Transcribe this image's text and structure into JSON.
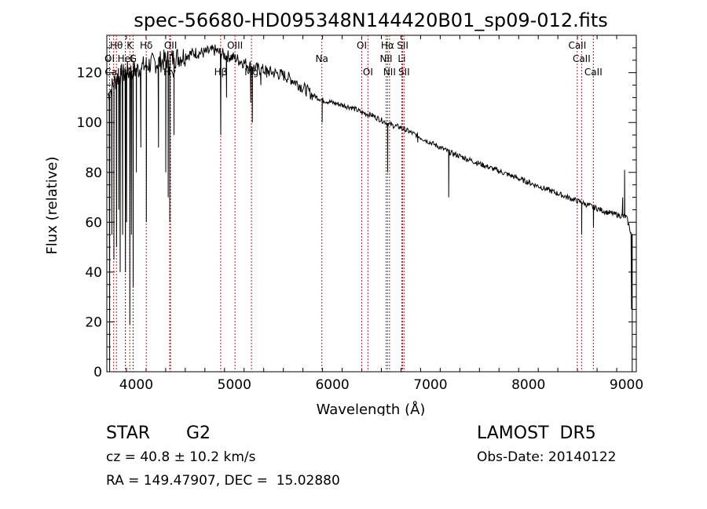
{
  "chart_data": {
    "type": "line",
    "title": "spec-56680-HD095348N144420B01_sp09-012.fits",
    "xlabel": "Wavelength (Å)",
    "ylabel": "Flux (relative)",
    "xlim": [
      3700,
      9100
    ],
    "ylim": [
      0,
      135
    ],
    "xticks": [
      4000,
      5000,
      6000,
      7000,
      8000,
      9000
    ],
    "yticks": [
      0,
      20,
      40,
      60,
      80,
      100,
      120
    ],
    "grid": false,
    "line_color": "#000000",
    "marker_color": "#b22222",
    "continuum": [
      [
        3700,
        110
      ],
      [
        3800,
        118
      ],
      [
        3900,
        120
      ],
      [
        4000,
        121
      ],
      [
        4100,
        123
      ],
      [
        4200,
        124
      ],
      [
        4300,
        125
      ],
      [
        4400,
        126
      ],
      [
        4500,
        127
      ],
      [
        4600,
        128
      ],
      [
        4700,
        128
      ],
      [
        4800,
        129
      ],
      [
        4900,
        127
      ],
      [
        5000,
        126
      ],
      [
        5100,
        124
      ],
      [
        5200,
        122
      ],
      [
        5300,
        121
      ],
      [
        5400,
        120
      ],
      [
        5500,
        119
      ],
      [
        5600,
        117
      ],
      [
        5700,
        114
      ],
      [
        5800,
        111
      ],
      [
        5900,
        109
      ],
      [
        6000,
        108
      ],
      [
        6100,
        107
      ],
      [
        6200,
        106
      ],
      [
        6300,
        104
      ],
      [
        6400,
        103
      ],
      [
        6500,
        101
      ],
      [
        6600,
        99
      ],
      [
        6700,
        98
      ],
      [
        6800,
        96
      ],
      [
        6900,
        94
      ],
      [
        7000,
        92
      ],
      [
        7200,
        88
      ],
      [
        7400,
        85
      ],
      [
        7600,
        82
      ],
      [
        7800,
        79
      ],
      [
        8000,
        76
      ],
      [
        8200,
        73
      ],
      [
        8400,
        70
      ],
      [
        8600,
        67
      ],
      [
        8800,
        64
      ],
      [
        8900,
        63
      ],
      [
        9000,
        62
      ],
      [
        9050,
        55
      ]
    ],
    "absorption": [
      [
        3728,
        0
      ],
      [
        3750,
        55
      ],
      [
        3771,
        45
      ],
      [
        3798,
        50
      ],
      [
        3820,
        65
      ],
      [
        3835,
        40
      ],
      [
        3860,
        55
      ],
      [
        3889,
        40
      ],
      [
        3900,
        60
      ],
      [
        3934,
        19
      ],
      [
        3950,
        55
      ],
      [
        3968,
        34
      ],
      [
        4000,
        80
      ],
      [
        4046,
        90
      ],
      [
        4102,
        60
      ],
      [
        4226,
        90
      ],
      [
        4300,
        80
      ],
      [
        4325,
        70
      ],
      [
        4341,
        60
      ],
      [
        4384,
        95
      ],
      [
        4861,
        95
      ],
      [
        4920,
        110
      ],
      [
        5167,
        108
      ],
      [
        5183,
        100
      ],
      [
        5270,
        115
      ],
      [
        5330,
        118
      ],
      [
        5895,
        100
      ],
      [
        6563,
        80
      ],
      [
        6870,
        92
      ],
      [
        7186,
        70
      ],
      [
        8542,
        55
      ],
      [
        8662,
        58
      ],
      [
        9050,
        25
      ]
    ],
    "spikes": [
      [
        8980,
        81
      ],
      [
        8960,
        70
      ]
    ],
    "lines": [
      {
        "label": "Hθ",
        "x": 3798,
        "row": 0
      },
      {
        "label": "K",
        "x": 3934,
        "row": 0
      },
      {
        "label": "Hδ",
        "x": 4102,
        "row": 0
      },
      {
        "label": "OII",
        "x": 4350,
        "row": 0
      },
      {
        "label": "OIII",
        "x": 5007,
        "row": 0
      },
      {
        "label": "OI",
        "x": 6300,
        "row": 0
      },
      {
        "label": "Hα",
        "x": 6563,
        "row": 0
      },
      {
        "label": "SII",
        "x": 6717,
        "row": 0
      },
      {
        "label": "CaII",
        "x": 8498,
        "row": 0
      },
      {
        "label": "OI",
        "x": 3728,
        "row": 1
      },
      {
        "label": "HeI",
        "x": 3889,
        "row": 1
      },
      {
        "label": "G",
        "x": 3968,
        "row": 1
      },
      {
        "label": "Na",
        "x": 5893,
        "row": 1
      },
      {
        "label": "NII",
        "x": 6548,
        "row": 1
      },
      {
        "label": "Li",
        "x": 6708,
        "row": 1
      },
      {
        "label": "CaII",
        "x": 8542,
        "row": 1
      },
      {
        "label": "CaII",
        "x": 3770,
        "row": 2
      },
      {
        "label": "Hζ",
        "x": 3889,
        "row": 2
      },
      {
        "label": "H",
        "x": 3968,
        "row": 2
      },
      {
        "label": "Hγ",
        "x": 4341,
        "row": 2
      },
      {
        "label": "Hβ",
        "x": 4861,
        "row": 2
      },
      {
        "label": "Mg",
        "x": 5175,
        "row": 2
      },
      {
        "label": "OI",
        "x": 6363,
        "row": 2
      },
      {
        "label": "NII",
        "x": 6583,
        "row": 2
      },
      {
        "label": "SII",
        "x": 6731,
        "row": 2
      },
      {
        "label": "CaII",
        "x": 8662,
        "row": 2
      }
    ]
  },
  "info": {
    "object_type": "STAR",
    "subclass": "G2",
    "survey": "LAMOST  DR5",
    "redshift": "cz = 40.8 ± 10.2 km/s",
    "obs_date": "Obs-Date: 20140122",
    "coords": "RA = 149.47907, DEC =  15.02880"
  }
}
